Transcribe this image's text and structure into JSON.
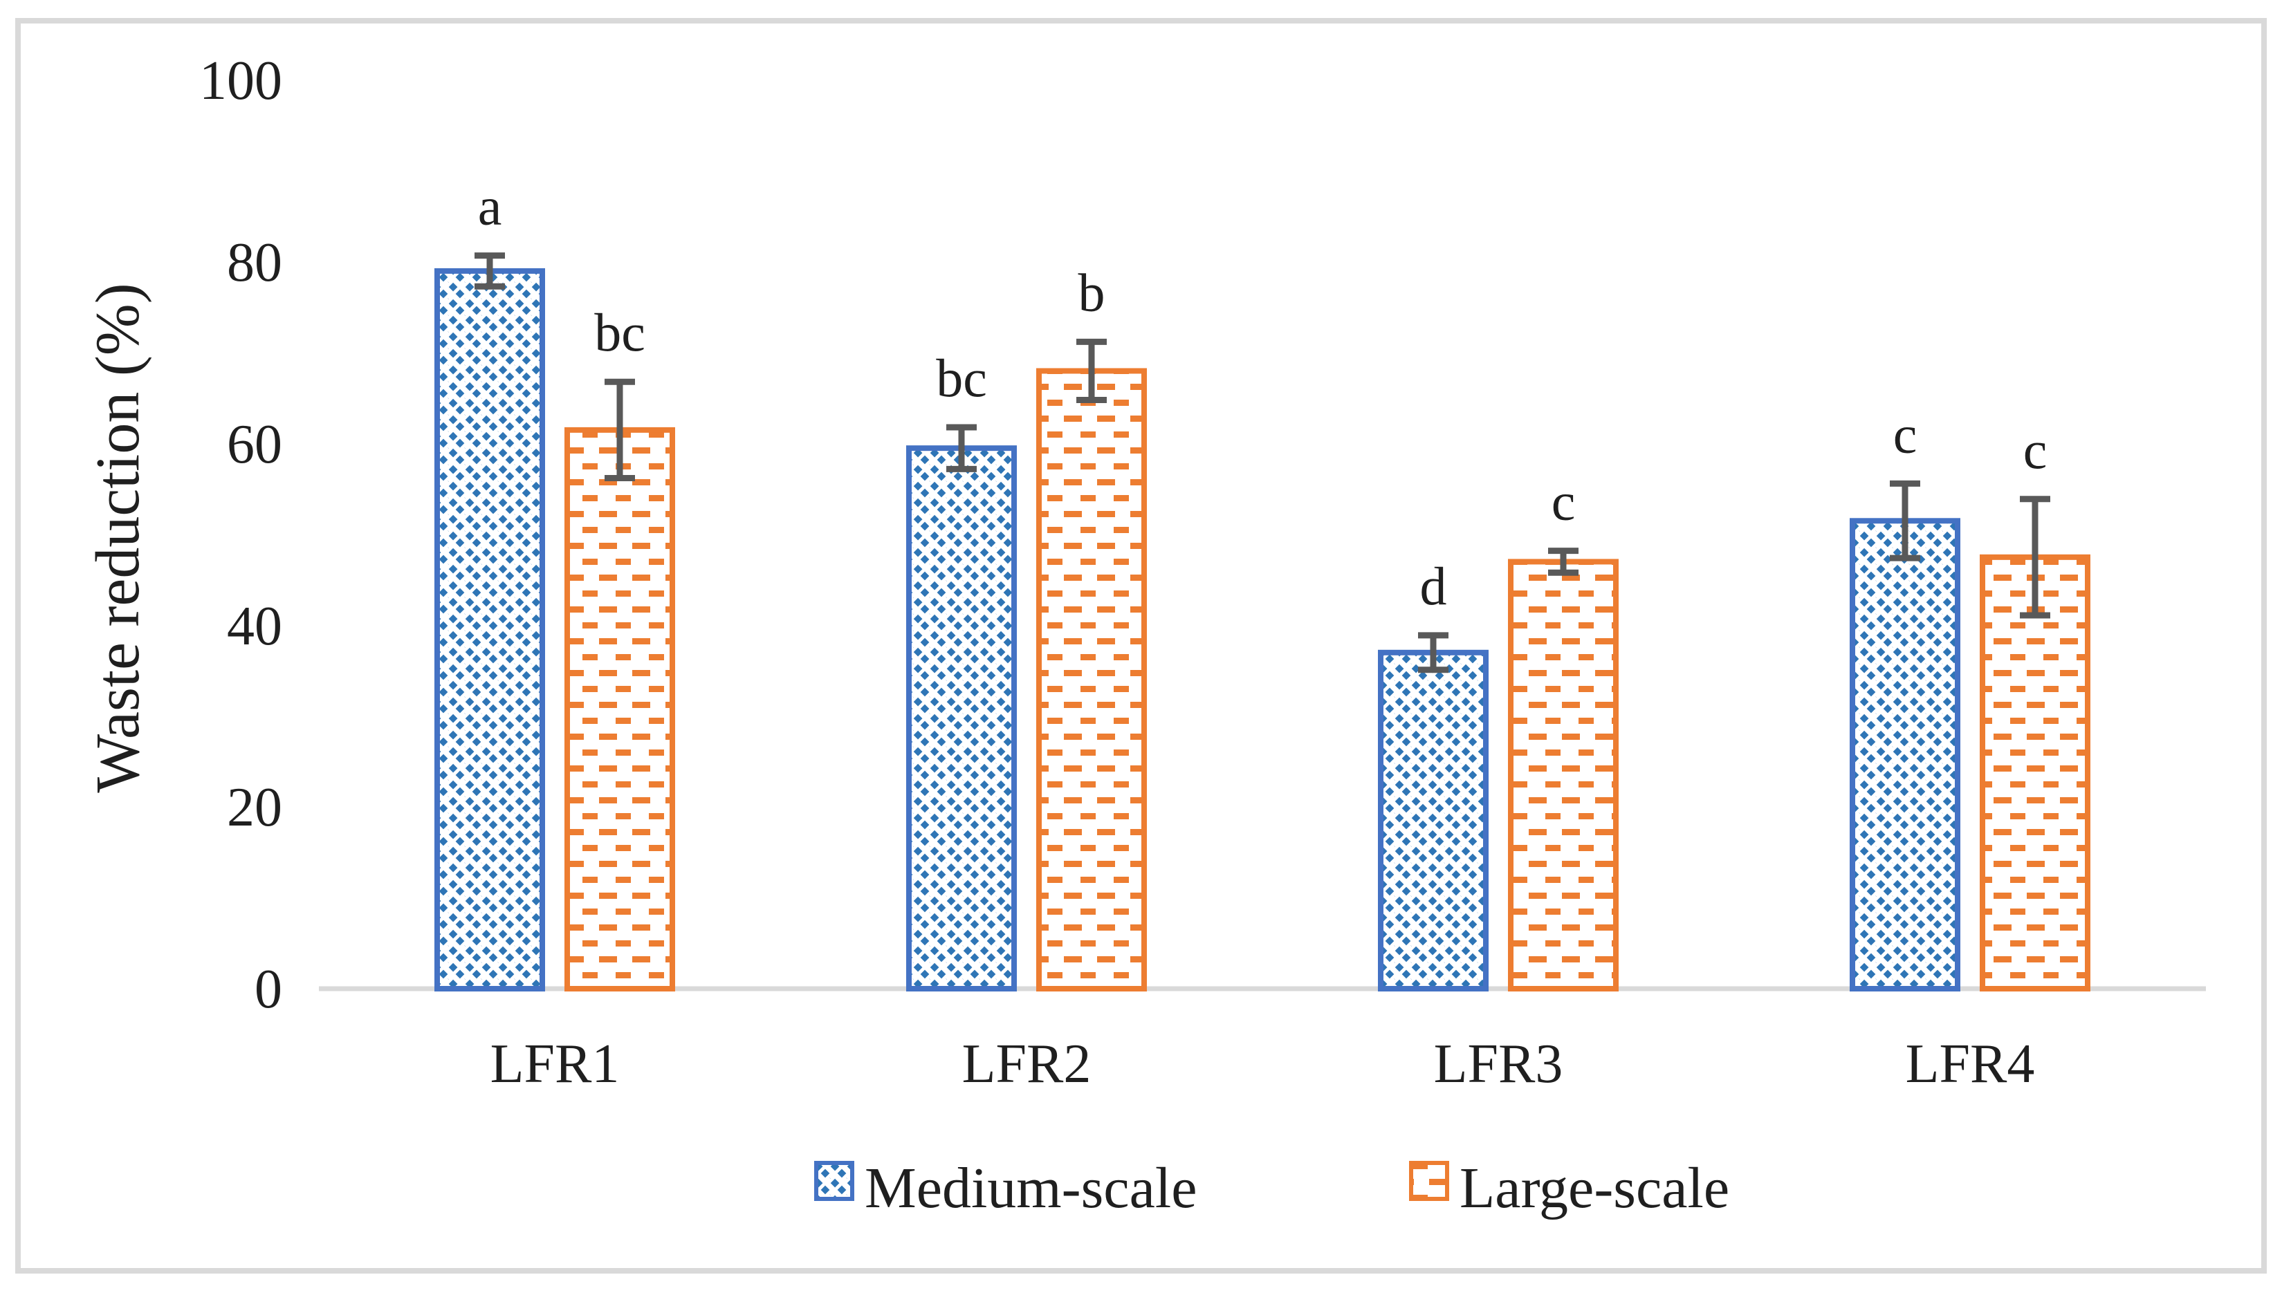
{
  "figure": {
    "background": "#FFFFFF",
    "border_color": "#D9D9D9"
  },
  "chart_data": {
    "type": "bar",
    "title": "",
    "xlabel": "",
    "ylabel": "Waste reduction (%)",
    "categories": [
      "LFR1",
      "LFR2",
      "LFR3",
      "LFR4"
    ],
    "y_ticks": [
      0,
      20,
      40,
      60,
      80,
      100
    ],
    "ylim": [
      0,
      100
    ],
    "grid": false,
    "legend_position": "bottom",
    "axis_line_color": "#D9D9D9",
    "error_bar_color": "#595959",
    "text_color": "#1F1F1F",
    "series": [
      {
        "name": "Medium-scale",
        "color": "#4472C4",
        "pattern": "diagonal-dotted-hatch",
        "pattern_color": "#2E75B6",
        "values": [
          79,
          59.5,
          37,
          51.5
        ],
        "errors": [
          1.7,
          2.3,
          1.9,
          4.1
        ],
        "sig_labels": [
          "a",
          "bc",
          "d",
          "c"
        ]
      },
      {
        "name": "Large-scale",
        "color": "#ED7D31",
        "pattern": "horizontal-dashes",
        "pattern_color": "#ED7D31",
        "values": [
          61.5,
          68,
          47,
          47.5
        ],
        "errors": [
          5.3,
          3.2,
          1.2,
          6.4
        ],
        "sig_labels": [
          "bc",
          "b",
          "c",
          "c"
        ]
      }
    ]
  }
}
